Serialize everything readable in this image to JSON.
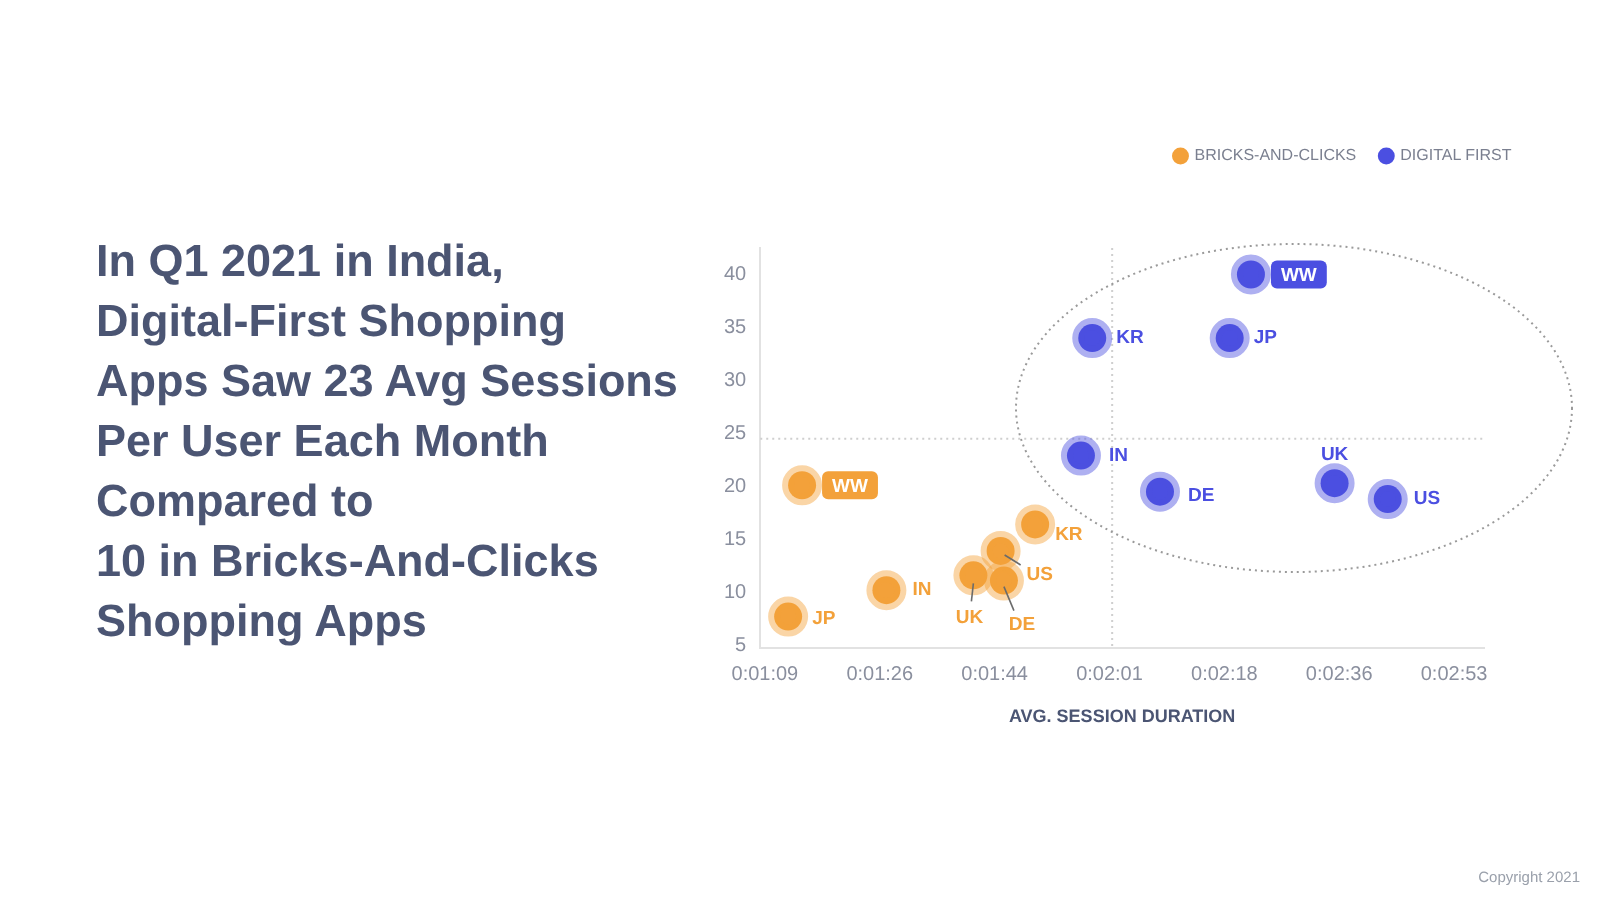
{
  "chart_data": {
    "type": "scatter",
    "title": "In Q1 2021 in India,\nDigital-First Shopping\nApps Saw 23 Avg Sessions\nPer User Each Month\nCompared to\n10 in Bricks-And-Clicks\nShopping Apps",
    "xlabel": "AVG. SESSION DURATION",
    "legend": "top right",
    "marker": "circle",
    "grid": false,
    "xlim": [
      68.5,
      177.5
    ],
    "xticks": [
      {
        "value": 69.2,
        "label": "0:01:09"
      },
      {
        "value": 86.5,
        "label": "0:01:26"
      },
      {
        "value": 103.8,
        "label": "0:01:44"
      },
      {
        "value": 121.1,
        "label": "0:02:01"
      },
      {
        "value": 138.4,
        "label": "0:02:18"
      },
      {
        "value": 155.7,
        "label": "0:02:36"
      },
      {
        "value": 173.0,
        "label": "0:02:53"
      }
    ],
    "ylim": [
      4.7,
      42.5
    ],
    "yticks": [
      5,
      10,
      15,
      20,
      25,
      30,
      35,
      40
    ],
    "series": [
      {
        "name": "BRICKS-AND-CLICKS",
        "color": "#f3a13a",
        "x": [
          72.7,
          74.8,
          87.5,
          100.6,
          105.2,
          104.7,
          109.9
        ],
        "values": [
          7.7,
          20.1,
          10.2,
          11.6,
          11.1,
          13.9,
          16.4
        ]
      },
      {
        "name": "DIGITAL FIRST",
        "color": "#4b4fe1",
        "x": [
          142.4,
          118.5,
          139.2,
          116.8,
          128.7,
          155.0,
          163.0
        ],
        "values": [
          40.0,
          34.0,
          34.0,
          22.9,
          19.5,
          20.3,
          18.8
        ]
      }
    ],
    "ref_lines": [
      {
        "axis": "x",
        "value": 121.5,
        "color": "#cfcfcf",
        "line_style": "dotted"
      },
      {
        "axis": "y",
        "value": 24.5,
        "color": "#cfcfcf",
        "line_style": "dotted"
      }
    ],
    "annotations": [
      {
        "text": "JP",
        "x": 72.7,
        "y": 7.7
      },
      {
        "text": "WW",
        "x": 74.8,
        "y": 20.1
      },
      {
        "text": "IN",
        "x": 87.5,
        "y": 10.2
      },
      {
        "text": "UK",
        "x": 100.6,
        "y": 11.6
      },
      {
        "text": "DE",
        "x": 105.2,
        "y": 11.1
      },
      {
        "text": "US",
        "x": 104.7,
        "y": 13.9
      },
      {
        "text": "KR",
        "x": 109.9,
        "y": 16.4
      },
      {
        "text": "WW",
        "x": 142.4,
        "y": 40.0
      },
      {
        "text": "KR",
        "x": 118.5,
        "y": 34.0
      },
      {
        "text": "JP",
        "x": 139.2,
        "y": 34.0
      },
      {
        "text": "IN",
        "x": 116.8,
        "y": 22.9
      },
      {
        "text": "DE",
        "x": 128.7,
        "y": 19.5
      },
      {
        "text": "UK",
        "x": 155.0,
        "y": 20.3
      },
      {
        "text": "US",
        "x": 163.0,
        "y": 18.8
      },
      "Copyright 2021"
    ]
  }
}
